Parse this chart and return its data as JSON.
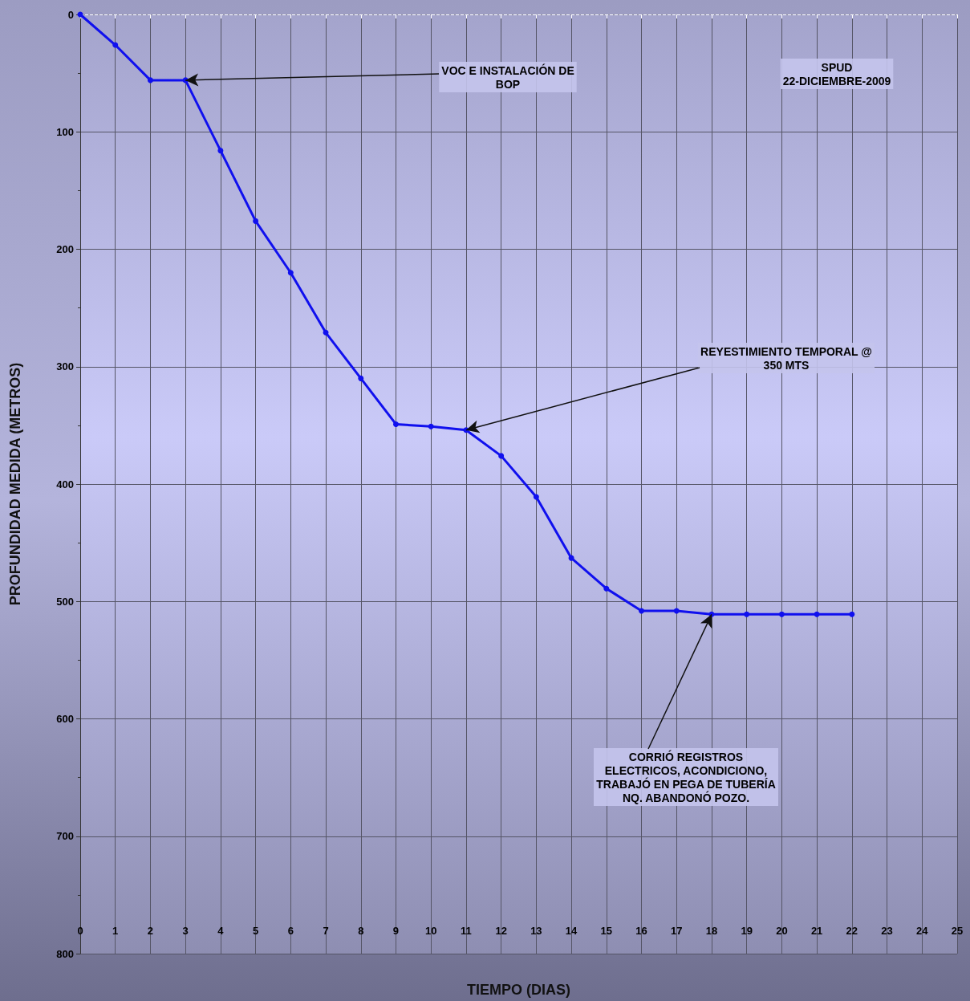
{
  "chart_data": {
    "type": "line",
    "xlabel": "TIEMPO (DIAS)",
    "ylabel": "PROFUNDIDAD MEDIDA (METROS)",
    "x": [
      0,
      1,
      2,
      3,
      4,
      5,
      6,
      7,
      8,
      9,
      10,
      11,
      12,
      13,
      14,
      15,
      16,
      17,
      18,
      19,
      20,
      21,
      22
    ],
    "series": [
      {
        "color": "#1010ee",
        "values": [
          0,
          26,
          56,
          56,
          116,
          176,
          220,
          271,
          310,
          349,
          351,
          354,
          376,
          411,
          463,
          489,
          508,
          508,
          511,
          511,
          511,
          511,
          511
        ]
      }
    ],
    "xlim": [
      0,
      25
    ],
    "xticks": [
      0,
      1,
      2,
      3,
      4,
      5,
      6,
      7,
      8,
      9,
      10,
      11,
      12,
      13,
      14,
      15,
      16,
      17,
      18,
      19,
      20,
      21,
      22,
      23,
      24,
      25
    ],
    "ylim": [
      800,
      0
    ],
    "yticks": [
      0,
      100,
      200,
      300,
      400,
      500,
      600,
      700,
      800
    ],
    "grid": true,
    "marker": "circle",
    "line_style": "solid",
    "annotations": [
      {
        "text": "VOC E INSTALACIÓN DE\nBOP",
        "x": 3,
        "y": 56
      },
      {
        "text": "REYESTIMIENTO TEMPORAL @\n350 MTS",
        "x": 11,
        "y": 354
      },
      {
        "text": "CORRIÓ REGISTROS\nELECTRICOS, ACONDICIONO,\nTRABAJÓ EN PEGA DE TUBERÍA\nNQ. ABANDONÓ POZO.",
        "x": 18,
        "y": 511
      },
      "SPUD\n22-DICIEMBRE-2009"
    ]
  }
}
